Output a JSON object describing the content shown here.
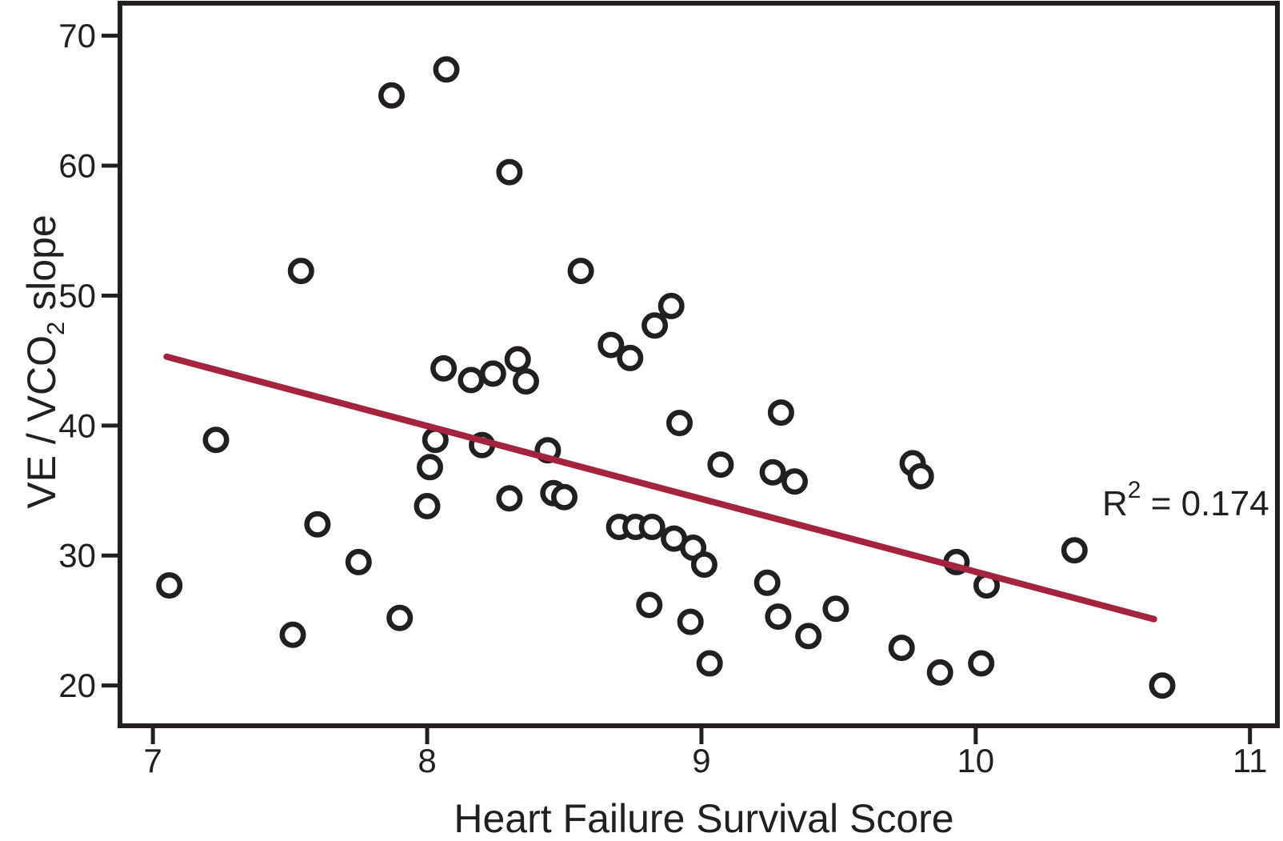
{
  "chart_data": {
    "type": "scatter",
    "title": "",
    "xlabel": "Heart Failure Survival Score",
    "ylabel_main": "VE / VCO",
    "ylabel_sub": "2",
    "ylabel_rest": " slope",
    "x_ticks": [
      7,
      8,
      9,
      10,
      11
    ],
    "y_ticks": [
      70,
      60,
      50,
      40,
      30,
      20
    ],
    "xlim": [
      6.88,
      11.1
    ],
    "ylim": [
      16.9,
      72.5
    ],
    "grid": false,
    "legend": "none",
    "marker": {
      "shape": "open-circle",
      "stroke_color": "#231f20",
      "fill_color": "#ffffff"
    },
    "ink_color": "#231f20",
    "trend_color": "#a3243c",
    "points": [
      [
        7.06,
        27.7
      ],
      [
        7.23,
        38.9
      ],
      [
        7.51,
        23.9
      ],
      [
        7.54,
        51.9
      ],
      [
        7.6,
        32.4
      ],
      [
        7.75,
        29.5
      ],
      [
        7.87,
        65.4
      ],
      [
        7.9,
        25.2
      ],
      [
        8.0,
        33.8
      ],
      [
        8.01,
        36.8
      ],
      [
        8.03,
        38.9
      ],
      [
        8.06,
        44.4
      ],
      [
        8.07,
        67.4
      ],
      [
        8.16,
        43.5
      ],
      [
        8.2,
        38.5
      ],
      [
        8.24,
        44.0
      ],
      [
        8.3,
        34.4
      ],
      [
        8.3,
        59.5
      ],
      [
        8.33,
        45.1
      ],
      [
        8.36,
        43.4
      ],
      [
        8.44,
        38.1
      ],
      [
        8.46,
        34.8
      ],
      [
        8.5,
        34.5
      ],
      [
        8.56,
        51.9
      ],
      [
        8.67,
        46.2
      ],
      [
        8.7,
        32.2
      ],
      [
        8.74,
        45.2
      ],
      [
        8.76,
        32.2
      ],
      [
        8.81,
        26.2
      ],
      [
        8.82,
        32.2
      ],
      [
        8.83,
        47.7
      ],
      [
        8.89,
        49.2
      ],
      [
        8.9,
        31.3
      ],
      [
        8.92,
        40.2
      ],
      [
        8.96,
        24.9
      ],
      [
        8.97,
        30.6
      ],
      [
        9.01,
        29.3
      ],
      [
        9.03,
        21.7
      ],
      [
        9.07,
        37.0
      ],
      [
        9.24,
        27.9
      ],
      [
        9.26,
        36.4
      ],
      [
        9.28,
        25.3
      ],
      [
        9.29,
        41.0
      ],
      [
        9.34,
        35.7
      ],
      [
        9.39,
        23.8
      ],
      [
        9.49,
        25.9
      ],
      [
        9.73,
        22.9
      ],
      [
        9.77,
        37.1
      ],
      [
        9.8,
        36.1
      ],
      [
        9.87,
        21.0
      ],
      [
        9.93,
        29.5
      ],
      [
        10.02,
        21.7
      ],
      [
        10.04,
        27.7
      ],
      [
        10.36,
        30.4
      ],
      [
        10.68,
        20.0
      ]
    ],
    "trendline": {
      "x1": 7.05,
      "y1": 45.3,
      "x2": 10.65,
      "y2": 25.1
    },
    "annotation": {
      "base": "R",
      "sup": "2",
      "rest": " = 0.174"
    }
  }
}
